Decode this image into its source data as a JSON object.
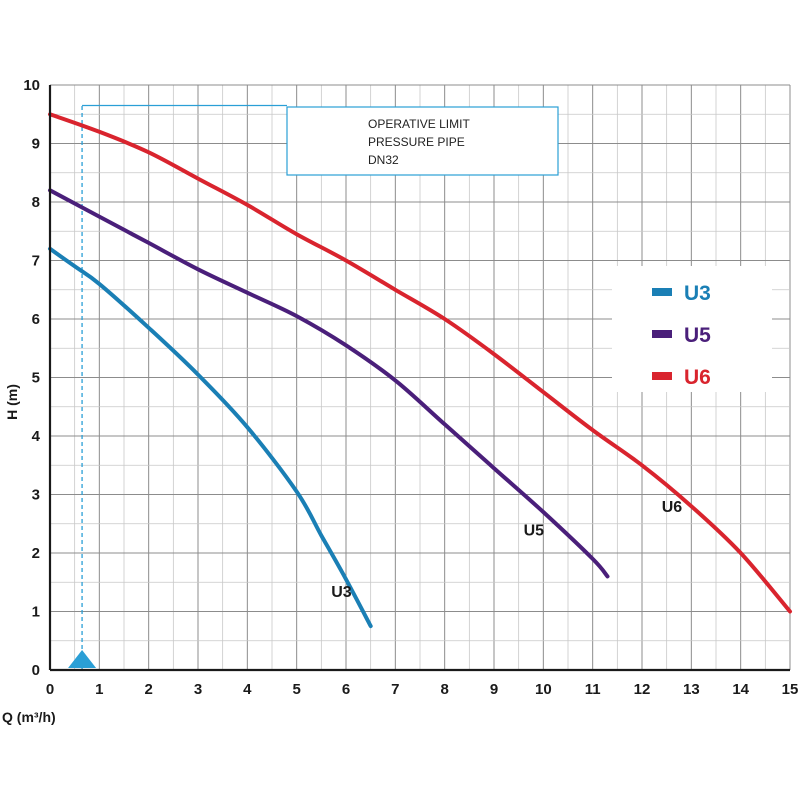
{
  "chart_data": {
    "type": "line",
    "xlabel": "Q (m³/h)",
    "ylabel": "H (m)",
    "xlim": [
      0,
      15
    ],
    "ylim": [
      0,
      10
    ],
    "xticks": [
      0,
      1,
      2,
      3,
      4,
      5,
      6,
      7,
      8,
      9,
      10,
      11,
      12,
      13,
      14,
      15
    ],
    "yticks": [
      0,
      1,
      2,
      3,
      4,
      5,
      6,
      7,
      8,
      9,
      10
    ],
    "grid": true,
    "legend_position": "right",
    "series": [
      {
        "name": "U3",
        "color": "#1a7fb5",
        "label_at": [
          5.7,
          1.25
        ],
        "points": [
          [
            0,
            7.2
          ],
          [
            0.5,
            6.9
          ],
          [
            1,
            6.6
          ],
          [
            2,
            5.85
          ],
          [
            3,
            5.05
          ],
          [
            4,
            4.15
          ],
          [
            5,
            3.05
          ],
          [
            5.5,
            2.3
          ],
          [
            6,
            1.55
          ],
          [
            6.5,
            0.75
          ]
        ]
      },
      {
        "name": "U5",
        "color": "#4a1f7a",
        "label_at": [
          9.6,
          2.3
        ],
        "points": [
          [
            0,
            8.2
          ],
          [
            1,
            7.75
          ],
          [
            2,
            7.3
          ],
          [
            3,
            6.85
          ],
          [
            4,
            6.45
          ],
          [
            5,
            6.05
          ],
          [
            6,
            5.55
          ],
          [
            7,
            4.95
          ],
          [
            8,
            4.2
          ],
          [
            9,
            3.45
          ],
          [
            10,
            2.7
          ],
          [
            11,
            1.9
          ],
          [
            11.3,
            1.6
          ]
        ]
      },
      {
        "name": "U6",
        "color": "#d9242e",
        "label_at": [
          12.4,
          2.7
        ],
        "points": [
          [
            0,
            9.5
          ],
          [
            1,
            9.2
          ],
          [
            2,
            8.85
          ],
          [
            3,
            8.4
          ],
          [
            4,
            7.95
          ],
          [
            5,
            7.45
          ],
          [
            6,
            7.0
          ],
          [
            7,
            6.5
          ],
          [
            8,
            6.0
          ],
          [
            9,
            5.4
          ],
          [
            10,
            4.75
          ],
          [
            11,
            4.1
          ],
          [
            12,
            3.5
          ],
          [
            13,
            2.8
          ],
          [
            14,
            2.0
          ],
          [
            15,
            1.0
          ]
        ]
      }
    ],
    "operative_limit": {
      "q": 0.65,
      "h": 9.65,
      "color": "#2a9fd6",
      "note_lines": [
        "OPERATIVE LIMIT",
        "PRESSURE PIPE",
        "DN32"
      ]
    }
  }
}
